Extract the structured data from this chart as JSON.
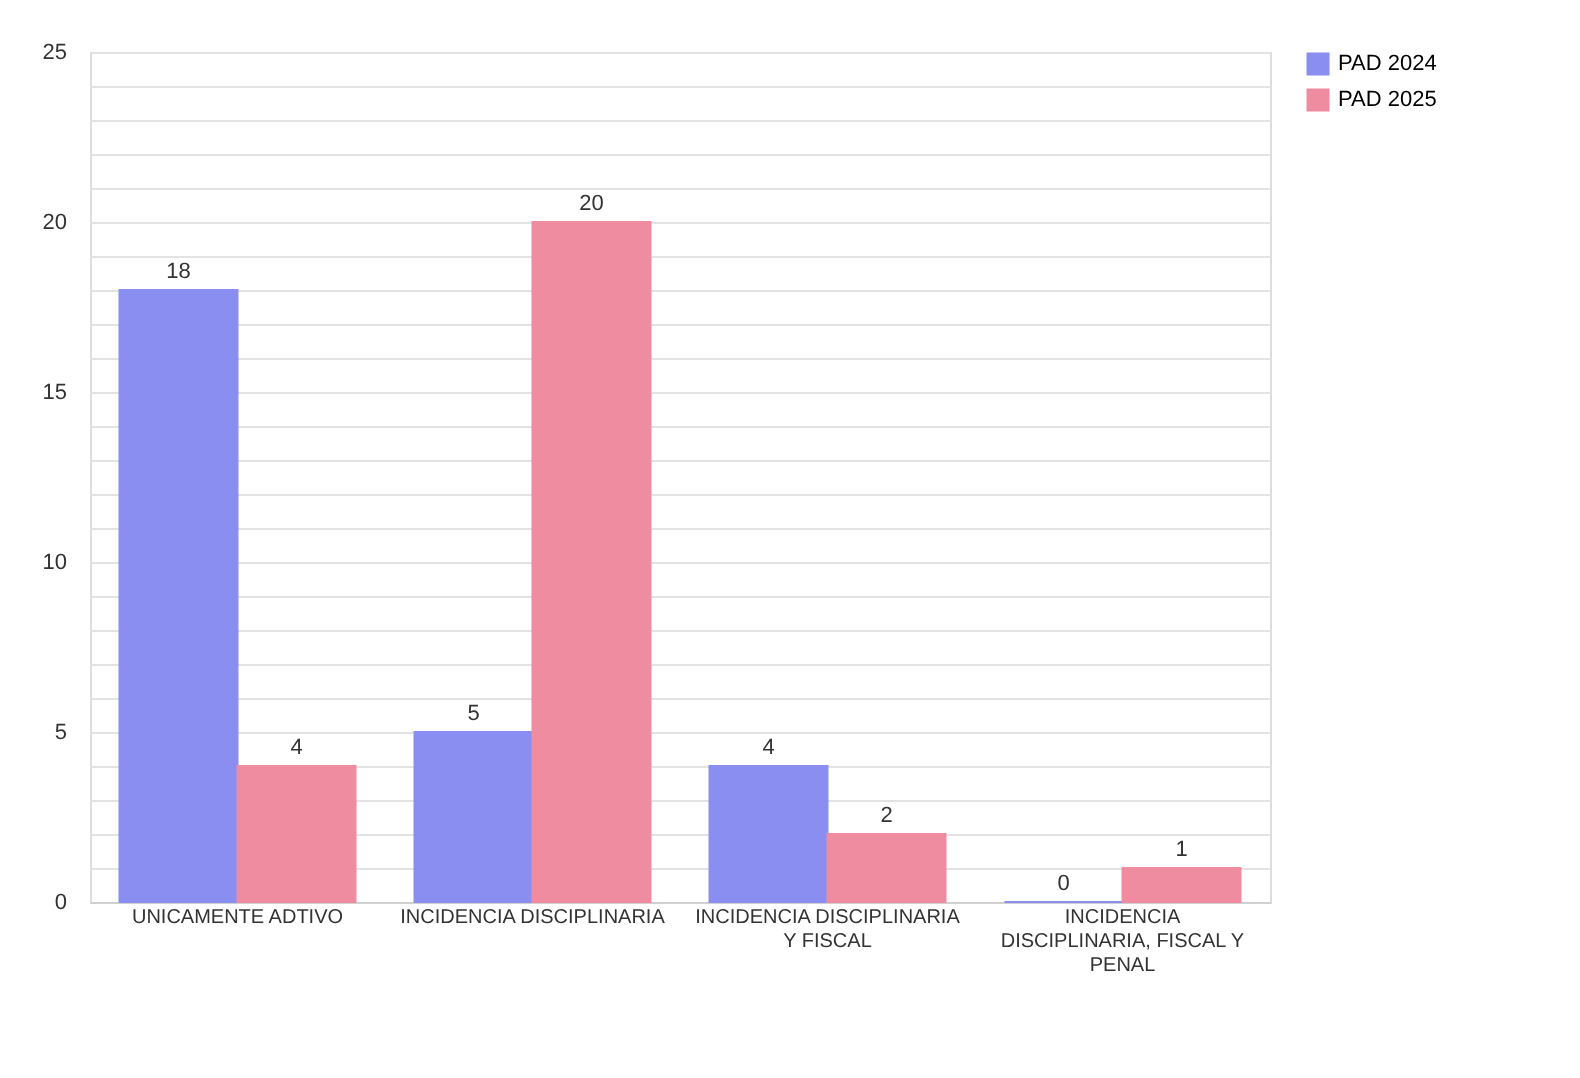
{
  "chart_data": {
    "type": "bar",
    "categories": [
      "UNICAMENTE ADTIVO",
      "INCIDENCIA DISCIPLINARIA",
      "INCIDENCIA DISCIPLINARIA Y FISCAL",
      "INCIDENCIA DISCIPLINARIA, FISCAL Y PENAL"
    ],
    "series": [
      {
        "name": "PAD 2024",
        "color": "#8a8ef0",
        "values": [
          18,
          5,
          4,
          0
        ]
      },
      {
        "name": "PAD 2025",
        "color": "#f08ca0",
        "values": [
          4,
          20,
          2,
          1
        ]
      }
    ],
    "ylim": [
      0,
      25
    ],
    "yticks": [
      0,
      {
        "value": 1,
        "label": null
      },
      {
        "value": 2,
        "label": null
      },
      {
        "value": 3,
        "label": null
      },
      {
        "value": 4,
        "label": null
      },
      5,
      {
        "value": 6,
        "label": null
      },
      {
        "value": 7,
        "label": null
      },
      {
        "value": 8,
        "label": null
      },
      {
        "value": 9,
        "label": null
      },
      10,
      {
        "value": 11,
        "label": null
      },
      {
        "value": 12,
        "label": null
      },
      {
        "value": 13,
        "label": null
      },
      {
        "value": 14,
        "label": null
      },
      15,
      {
        "value": 16,
        "label": null
      },
      {
        "value": 17,
        "label": null
      },
      {
        "value": 18,
        "label": null
      },
      {
        "value": 19,
        "label": null
      },
      20,
      {
        "value": 21,
        "label": null
      },
      {
        "value": 22,
        "label": null
      },
      {
        "value": 23,
        "label": null
      },
      {
        "value": 24,
        "label": null
      },
      25
    ],
    "grid": "y",
    "legend": "right",
    "data_labels": true
  }
}
